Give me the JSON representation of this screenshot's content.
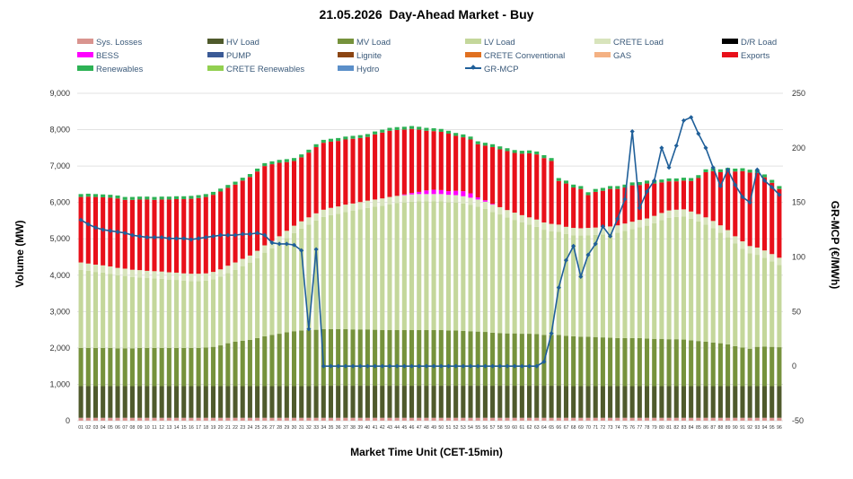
{
  "chart_data": {
    "type": "bar",
    "stacked": true,
    "title": "21.05.2026  Day-Ahead Market - Buy",
    "xlabel": "Market Time Unit (CET-15min)",
    "ylabel": "Volume (MW)",
    "y2label": "GR-MCP (€/MWh)",
    "ylim": [
      0,
      9000
    ],
    "yticks": [
      "0",
      "1,000",
      "2,000",
      "3,000",
      "4,000",
      "5,000",
      "6,000",
      "7,000",
      "8,000",
      "9,000"
    ],
    "y2lim": [
      -50,
      250
    ],
    "y2ticks": [
      "-50",
      "0",
      "50",
      "100",
      "150",
      "200",
      "250"
    ],
    "grid": "horizontal",
    "legend_position": "top",
    "categories": [
      "01",
      "02",
      "03",
      "04",
      "05",
      "06",
      "07",
      "08",
      "09",
      "10",
      "11",
      "12",
      "13",
      "14",
      "15",
      "16",
      "17",
      "18",
      "19",
      "20",
      "21",
      "22",
      "23",
      "24",
      "25",
      "26",
      "27",
      "28",
      "29",
      "30",
      "31",
      "32",
      "33",
      "34",
      "35",
      "36",
      "37",
      "38",
      "39",
      "40",
      "41",
      "42",
      "43",
      "44",
      "45",
      "46",
      "47",
      "48",
      "49",
      "50",
      "51",
      "52",
      "53",
      "54",
      "55",
      "56",
      "57",
      "58",
      "59",
      "60",
      "61",
      "62",
      "63",
      "64",
      "65",
      "66",
      "67",
      "68",
      "69",
      "70",
      "71",
      "72",
      "73",
      "74",
      "75",
      "76",
      "77",
      "78",
      "79",
      "80",
      "81",
      "82",
      "83",
      "84",
      "85",
      "86",
      "87",
      "88",
      "89",
      "90",
      "91",
      "92",
      "93",
      "94",
      "95",
      "96"
    ],
    "series": [
      {
        "name": "Sys. Losses",
        "color": "#d9948f",
        "kind": "bar",
        "values": [
          80,
          80,
          80,
          80,
          80,
          80,
          80,
          80,
          80,
          80,
          80,
          80,
          80,
          80,
          80,
          80,
          80,
          80,
          80,
          80,
          80,
          80,
          80,
          80,
          80,
          80,
          80,
          80,
          80,
          80,
          80,
          80,
          80,
          80,
          80,
          80,
          80,
          80,
          80,
          80,
          80,
          80,
          80,
          80,
          80,
          80,
          80,
          80,
          80,
          80,
          80,
          80,
          80,
          80,
          80,
          80,
          80,
          80,
          80,
          80,
          80,
          80,
          80,
          80,
          80,
          80,
          80,
          80,
          80,
          80,
          80,
          80,
          80,
          80,
          80,
          80,
          80,
          80,
          80,
          80,
          80,
          80,
          80,
          80,
          80,
          80,
          80,
          80,
          80,
          80,
          80,
          80,
          80,
          80,
          80,
          80
        ]
      },
      {
        "name": "HV Load",
        "color": "#4f5a2c",
        "kind": "bar",
        "values": [
          870,
          870,
          870,
          870,
          870,
          870,
          870,
          870,
          870,
          870,
          870,
          870,
          870,
          870,
          870,
          870,
          870,
          870,
          870,
          870,
          870,
          870,
          870,
          870,
          870,
          870,
          870,
          870,
          870,
          870,
          870,
          870,
          870,
          880,
          880,
          880,
          880,
          880,
          880,
          880,
          880,
          880,
          880,
          880,
          880,
          880,
          880,
          880,
          880,
          880,
          880,
          880,
          880,
          880,
          880,
          880,
          880,
          880,
          880,
          880,
          880,
          880,
          880,
          880,
          880,
          880,
          870,
          870,
          870,
          870,
          870,
          870,
          870,
          870,
          870,
          870,
          870,
          870,
          870,
          870,
          870,
          870,
          870,
          870,
          870,
          870,
          870,
          870,
          870,
          870,
          870,
          870,
          870,
          870,
          870,
          870
        ]
      },
      {
        "name": "MV Load",
        "color": "#76923c",
        "kind": "bar",
        "values": [
          1050,
          1050,
          1050,
          1050,
          1050,
          1040,
          1040,
          1040,
          1050,
          1050,
          1050,
          1050,
          1050,
          1050,
          1050,
          1050,
          1050,
          1060,
          1080,
          1120,
          1180,
          1220,
          1250,
          1270,
          1320,
          1370,
          1410,
          1440,
          1480,
          1510,
          1530,
          1540,
          1550,
          1560,
          1560,
          1560,
          1560,
          1550,
          1550,
          1550,
          1540,
          1530,
          1530,
          1530,
          1530,
          1530,
          1530,
          1530,
          1530,
          1530,
          1520,
          1520,
          1510,
          1500,
          1490,
          1480,
          1460,
          1450,
          1440,
          1440,
          1430,
          1430,
          1420,
          1400,
          1400,
          1400,
          1380,
          1370,
          1360,
          1360,
          1350,
          1340,
          1330,
          1320,
          1320,
          1320,
          1320,
          1310,
          1300,
          1300,
          1290,
          1290,
          1280,
          1260,
          1240,
          1220,
          1200,
          1180,
          1150,
          1100,
          1060,
          1030,
          1080,
          1090,
          1080,
          1070
        ]
      },
      {
        "name": "LV Load",
        "color": "#c4d79b",
        "kind": "bar",
        "values": [
          2150,
          2120,
          2090,
          2070,
          2040,
          2010,
          1990,
          1960,
          1940,
          1920,
          1910,
          1900,
          1880,
          1870,
          1850,
          1840,
          1840,
          1840,
          1860,
          1890,
          1930,
          1980,
          2050,
          2120,
          2200,
          2300,
          2380,
          2480,
          2590,
          2700,
          2800,
          2900,
          3000,
          3080,
          3130,
          3170,
          3220,
          3260,
          3300,
          3340,
          3380,
          3420,
          3460,
          3490,
          3510,
          3530,
          3540,
          3540,
          3540,
          3540,
          3530,
          3520,
          3500,
          3470,
          3430,
          3380,
          3320,
          3260,
          3190,
          3120,
          3060,
          3000,
          2950,
          2890,
          2850,
          2830,
          2800,
          2780,
          2780,
          2790,
          2810,
          2830,
          2860,
          2900,
          2950,
          3000,
          3050,
          3100,
          3180,
          3260,
          3340,
          3360,
          3380,
          3340,
          3290,
          3220,
          3140,
          3040,
          2940,
          2820,
          2720,
          2620,
          2530,
          2440,
          2350,
          2260
        ]
      },
      {
        "name": "CRETE Load",
        "color": "#d8e4bc",
        "kind": "bar",
        "values": [
          200,
          200,
          200,
          200,
          200,
          200,
          200,
          200,
          200,
          200,
          200,
          200,
          200,
          200,
          200,
          200,
          200,
          200,
          200,
          200,
          200,
          200,
          200,
          200,
          200,
          200,
          200,
          200,
          200,
          200,
          200,
          200,
          200,
          200,
          200,
          200,
          200,
          200,
          200,
          200,
          200,
          200,
          200,
          200,
          200,
          200,
          200,
          200,
          200,
          200,
          200,
          200,
          200,
          200,
          200,
          200,
          200,
          200,
          200,
          200,
          200,
          200,
          200,
          200,
          200,
          200,
          200,
          200,
          200,
          200,
          200,
          200,
          200,
          200,
          200,
          200,
          200,
          200,
          200,
          200,
          200,
          200,
          200,
          200,
          200,
          200,
          200,
          200,
          200,
          200,
          200,
          200,
          200,
          200,
          200,
          200
        ]
      },
      {
        "name": "BESS",
        "color": "#ff00ff",
        "kind": "bar",
        "values": [
          0,
          0,
          0,
          0,
          0,
          0,
          0,
          0,
          0,
          0,
          0,
          0,
          0,
          0,
          0,
          0,
          0,
          0,
          0,
          0,
          0,
          0,
          0,
          0,
          0,
          0,
          0,
          0,
          0,
          0,
          0,
          0,
          0,
          0,
          0,
          0,
          0,
          0,
          0,
          0,
          0,
          0,
          0,
          0,
          20,
          40,
          60,
          100,
          120,
          110,
          100,
          120,
          140,
          120,
          60,
          40,
          20,
          0,
          0,
          0,
          0,
          0,
          0,
          0,
          0,
          0,
          0,
          0,
          0,
          0,
          0,
          0,
          0,
          0,
          0,
          0,
          0,
          0,
          0,
          0,
          0,
          0,
          0,
          0,
          0,
          0,
          0,
          0,
          0,
          0,
          0,
          0,
          0,
          0,
          0,
          0
        ]
      },
      {
        "name": "Exports",
        "color": "#e8101a",
        "kind": "bar",
        "values": [
          1800,
          1840,
          1860,
          1870,
          1890,
          1910,
          1890,
          1920,
          1940,
          1960,
          1960,
          1980,
          2000,
          2020,
          2040,
          2060,
          2080,
          2100,
          2120,
          2140,
          2140,
          2140,
          2150,
          2160,
          2180,
          2180,
          2110,
          2020,
          1890,
          1780,
          1760,
          1780,
          1820,
          1840,
          1820,
          1800,
          1790,
          1780,
          1760,
          1750,
          1790,
          1810,
          1820,
          1810,
          1780,
          1760,
          1710,
          1640,
          1610,
          1600,
          1580,
          1510,
          1480,
          1480,
          1460,
          1500,
          1560,
          1590,
          1620,
          1640,
          1690,
          1760,
          1790,
          1770,
          1730,
          1200,
          1190,
          1110,
          1080,
          900,
          980,
          1000,
          1030,
          1000,
          990,
          1000,
          960,
          960,
          890,
          840,
          800,
          780,
          790,
          840,
          990,
          1240,
          1370,
          1460,
          1630,
          1780,
          1930,
          2020,
          2050,
          2010,
          1960,
          1890
        ]
      },
      {
        "name": "Renewables",
        "color": "#2db255",
        "kind": "bar",
        "values": [
          80,
          80,
          80,
          80,
          80,
          80,
          80,
          80,
          80,
          80,
          80,
          80,
          80,
          80,
          80,
          80,
          80,
          80,
          80,
          80,
          80,
          80,
          80,
          80,
          80,
          80,
          80,
          80,
          80,
          80,
          80,
          80,
          80,
          80,
          80,
          80,
          80,
          80,
          80,
          80,
          80,
          80,
          80,
          80,
          80,
          80,
          80,
          80,
          80,
          80,
          80,
          80,
          80,
          80,
          80,
          80,
          80,
          80,
          80,
          80,
          80,
          80,
          80,
          80,
          80,
          80,
          80,
          80,
          80,
          80,
          80,
          80,
          80,
          80,
          80,
          80,
          80,
          80,
          80,
          80,
          80,
          80,
          80,
          80,
          80,
          80,
          80,
          80,
          80,
          80,
          80,
          80,
          80,
          80,
          80,
          80
        ]
      },
      {
        "name": "GR-MCP",
        "color": "#1f5f99",
        "kind": "line",
        "axis": "right",
        "values": [
          134,
          130,
          127,
          125,
          124,
          123,
          122,
          120,
          119,
          118,
          118,
          118,
          117,
          117,
          117,
          116,
          117,
          118,
          119,
          120,
          120,
          120,
          121,
          121,
          122,
          120,
          113,
          112,
          112,
          111,
          106,
          34,
          107,
          0,
          0,
          0,
          0,
          0,
          0,
          0,
          0,
          0,
          0,
          0,
          0,
          0,
          0,
          0,
          0,
          0,
          0,
          0,
          0,
          0,
          0,
          0,
          0,
          0,
          0,
          0,
          0,
          0,
          0,
          4,
          30,
          72,
          97,
          110,
          82,
          102,
          112,
          128,
          119,
          135,
          153,
          215,
          145,
          160,
          170,
          200,
          182,
          202,
          225,
          228,
          213,
          200,
          182,
          165,
          180,
          166,
          155,
          150,
          180,
          170,
          164,
          157
        ]
      }
    ],
    "legend": [
      "Sys. Losses",
      "HV Load",
      "MV Load",
      "LV Load",
      "CRETE Load",
      "D/R Load",
      "BESS",
      "PUMP",
      "Lignite",
      "CRETE Conventional",
      "GAS",
      "Exports",
      "Renewables",
      "CRETE Renewables",
      "Hydro",
      "GR-MCP"
    ],
    "legend_colors": {
      "Sys. Losses": "#d9948f",
      "HV Load": "#4f5a2c",
      "MV Load": "#76923c",
      "LV Load": "#c4d79b",
      "CRETE Load": "#d8e4bc",
      "D/R Load": "#000000",
      "BESS": "#ff00ff",
      "PUMP": "#3a5a96",
      "Lignite": "#8b4513",
      "CRETE Conventional": "#e07020",
      "GAS": "#f4b183",
      "Exports": "#e8101a",
      "Renewables": "#2db255",
      "CRETE Renewables": "#92d050",
      "Hydro": "#5b8fc9",
      "GR-MCP": "#1f5f99"
    }
  }
}
